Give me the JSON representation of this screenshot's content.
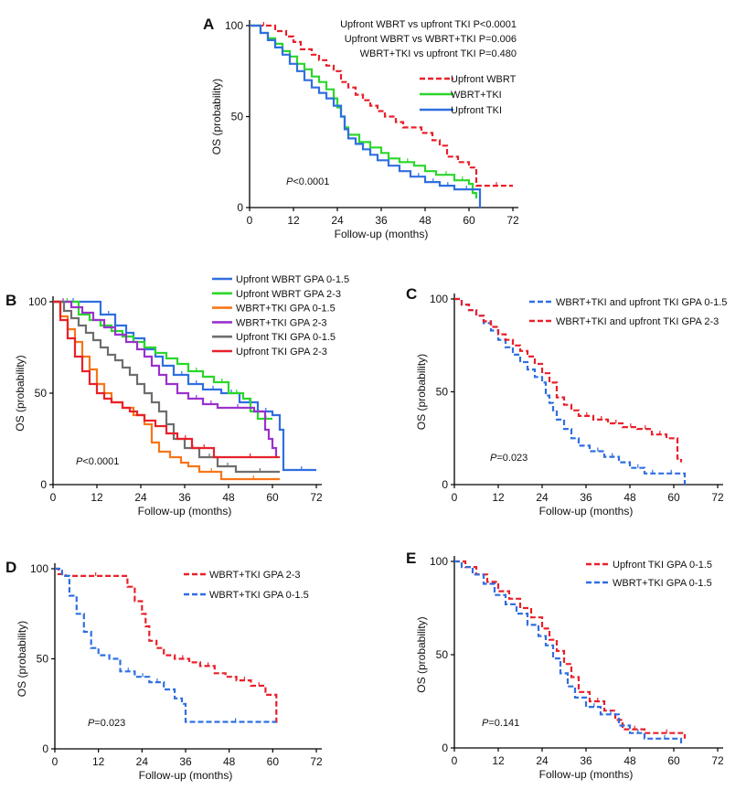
{
  "colors": {
    "red": "#e8212a",
    "green": "#2bd62b",
    "blue": "#2f6fe0",
    "orange": "#f7761a",
    "purple": "#9932cc",
    "gray": "#6e6e6e",
    "axis": "#000000"
  },
  "chart_data": [
    {
      "id": "A",
      "type": "line",
      "step": true,
      "letter": "A",
      "xlabel": "Follow-up (months)",
      "ylabel": "OS (probability)",
      "xticks": [
        0,
        12,
        24,
        36,
        48,
        60,
        72
      ],
      "yticks": [
        0,
        50,
        100
      ],
      "xlim": [
        0,
        72
      ],
      "ylim": [
        0,
        100
      ],
      "pvalue_label": "P",
      "pvalue_text": "<0.0001",
      "comparisons": [
        "Upfront WBRT vs upfront TKI P<0.0001",
        "Upfront WBRT vs WBRT+TKI  P=0.006",
        "WBRT+TKI vs upfront TKI  P=0.480"
      ],
      "series": [
        {
          "name": "Upfront WBRT",
          "color": "red",
          "dashed": true,
          "x": [
            0,
            7,
            10,
            12,
            14,
            17,
            19,
            21,
            23,
            25,
            27,
            29,
            31,
            33,
            35,
            37,
            40,
            42,
            44,
            47,
            50,
            52,
            54,
            57,
            60,
            62,
            72
          ],
          "y": [
            100,
            97,
            94,
            91,
            87,
            84,
            81,
            78,
            75,
            69,
            66,
            62,
            59,
            56,
            53,
            50,
            47,
            44,
            44,
            41,
            37,
            34,
            28,
            25,
            22,
            12,
            12
          ]
        },
        {
          "name": "WBRT+TKI",
          "color": "green",
          "dashed": false,
          "x": [
            0,
            3,
            5,
            7,
            9,
            11,
            13,
            15,
            17,
            19,
            21,
            23,
            24,
            25,
            26,
            27,
            30,
            33,
            36,
            38,
            41,
            45,
            48,
            51,
            56,
            60,
            61,
            62
          ],
          "y": [
            100,
            96,
            93,
            90,
            86,
            83,
            79,
            76,
            72,
            69,
            65,
            60,
            55,
            50,
            44,
            40,
            36,
            33,
            30,
            27,
            25,
            23,
            20,
            18,
            15,
            13,
            8,
            5
          ]
        },
        {
          "name": "Upfront TKI",
          "color": "blue",
          "dashed": false,
          "x": [
            0,
            3,
            5,
            7,
            9,
            11,
            13,
            15,
            17,
            19,
            21,
            23,
            25,
            26,
            27,
            29,
            31,
            33,
            35,
            38,
            41,
            44,
            48,
            52,
            56,
            62,
            63
          ],
          "y": [
            100,
            96,
            92,
            88,
            84,
            79,
            75,
            70,
            66,
            63,
            60,
            56,
            50,
            43,
            38,
            35,
            32,
            29,
            26,
            23,
            20,
            17,
            14,
            12,
            10,
            10,
            0
          ]
        }
      ]
    },
    {
      "id": "B",
      "type": "line",
      "step": true,
      "letter": "B",
      "xlabel": "Follow-up (months)",
      "ylabel": "OS (probability)",
      "xticks": [
        0,
        12,
        24,
        36,
        48,
        60,
        72
      ],
      "yticks": [
        0,
        50,
        100
      ],
      "xlim": [
        0,
        72
      ],
      "ylim": [
        0,
        100
      ],
      "pvalue_label": "P",
      "pvalue_text": "<0.0001",
      "series": [
        {
          "name": "Upfront WBRT GPA 0-1.5",
          "color": "blue",
          "dashed": false,
          "x": [
            0,
            10,
            13,
            17,
            20,
            22,
            25,
            28,
            30,
            33,
            37,
            41,
            46,
            51,
            56,
            60,
            62,
            63,
            72
          ],
          "y": [
            100,
            100,
            93,
            87,
            83,
            80,
            74,
            70,
            65,
            60,
            55,
            52,
            50,
            45,
            40,
            38,
            30,
            8,
            8
          ]
        },
        {
          "name": "Upfront WBRT GPA 2-3",
          "color": "green",
          "dashed": false,
          "x": [
            0,
            7,
            10,
            13,
            16,
            19,
            22,
            25,
            28,
            31,
            34,
            37,
            41,
            44,
            48,
            52,
            54,
            56,
            60
          ],
          "y": [
            100,
            93,
            90,
            87,
            84,
            81,
            78,
            75,
            72,
            69,
            66,
            62,
            59,
            56,
            50,
            47,
            40,
            36,
            36
          ]
        },
        {
          "name": "WBRT+TKI GPA 0-1.5",
          "color": "orange",
          "dashed": false,
          "x": [
            0,
            2,
            4,
            6,
            8,
            10,
            12,
            14,
            16,
            19,
            22,
            25,
            27,
            29,
            32,
            35,
            37,
            40,
            46,
            62
          ],
          "y": [
            100,
            92,
            85,
            78,
            70,
            63,
            55,
            50,
            45,
            42,
            38,
            33,
            23,
            18,
            15,
            12,
            10,
            7,
            3,
            3
          ]
        },
        {
          "name": "WBRT+TKI GPA 2-3",
          "color": "purple",
          "dashed": false,
          "x": [
            0,
            5,
            8,
            11,
            14,
            17,
            20,
            23,
            25,
            27,
            29,
            31,
            34,
            37,
            41,
            45,
            55,
            58,
            59,
            60,
            61
          ],
          "y": [
            100,
            97,
            94,
            90,
            86,
            82,
            78,
            74,
            70,
            65,
            60,
            55,
            50,
            47,
            44,
            42,
            40,
            30,
            25,
            20,
            15
          ]
        },
        {
          "name": "Upfront TKI GPA 0-1.5",
          "color": "gray",
          "dashed": false,
          "x": [
            0,
            3,
            5,
            7,
            9,
            11,
            13,
            15,
            17,
            19,
            21,
            23,
            25,
            27,
            29,
            31,
            33,
            36,
            40,
            45,
            50,
            62
          ],
          "y": [
            100,
            95,
            91,
            87,
            83,
            79,
            75,
            71,
            68,
            64,
            60,
            55,
            50,
            45,
            40,
            33,
            25,
            20,
            15,
            10,
            7,
            7
          ]
        },
        {
          "name": "Upfront TKI GPA 2-3",
          "color": "red",
          "dashed": false,
          "x": [
            0,
            2,
            4,
            6,
            8,
            10,
            12,
            14,
            16,
            19,
            21,
            23,
            25,
            28,
            31,
            34,
            38,
            44,
            62
          ],
          "y": [
            100,
            90,
            80,
            70,
            62,
            55,
            50,
            47,
            45,
            42,
            40,
            38,
            35,
            32,
            28,
            25,
            20,
            15,
            15
          ]
        }
      ]
    },
    {
      "id": "C",
      "type": "line",
      "step": true,
      "letter": "C",
      "xlabel": "Follow-up (months)",
      "ylabel": "OS (probability)",
      "xticks": [
        0,
        12,
        24,
        36,
        48,
        60,
        72
      ],
      "yticks": [
        0,
        50,
        100
      ],
      "xlim": [
        0,
        72
      ],
      "ylim": [
        0,
        100
      ],
      "pvalue_label": "P",
      "pvalue_text": "=0.023",
      "series": [
        {
          "name": "WBRT+TKI and upfront TKI GPA 0-1.5",
          "color": "blue",
          "dashed": true,
          "x": [
            0,
            2,
            4,
            6,
            8,
            10,
            12,
            14,
            16,
            18,
            20,
            22,
            24,
            25,
            26,
            27,
            28,
            30,
            32,
            34,
            37,
            41,
            45,
            48,
            52,
            56,
            62,
            63
          ],
          "y": [
            100,
            97,
            94,
            91,
            87,
            83,
            78,
            74,
            70,
            66,
            62,
            58,
            55,
            48,
            44,
            40,
            35,
            30,
            25,
            21,
            18,
            15,
            12,
            9,
            6,
            6,
            6,
            0
          ]
        },
        {
          "name": "WBRT+TKI and upfront TKI GPA 2-3",
          "color": "red",
          "dashed": true,
          "x": [
            0,
            2,
            4,
            6,
            8,
            10,
            12,
            14,
            16,
            18,
            20,
            22,
            24,
            26,
            28,
            30,
            32,
            34,
            38,
            42,
            46,
            50,
            54,
            58,
            61,
            62
          ],
          "y": [
            100,
            97,
            94,
            91,
            88,
            85,
            81,
            78,
            75,
            72,
            69,
            65,
            60,
            55,
            47,
            43,
            40,
            37,
            35,
            33,
            31,
            30,
            27,
            25,
            14,
            12
          ]
        }
      ]
    },
    {
      "id": "D",
      "type": "line",
      "step": true,
      "letter": "D",
      "xlabel": "Follow-up (months)",
      "ylabel": "OS (probability)",
      "xticks": [
        0,
        12,
        24,
        36,
        48,
        60,
        72
      ],
      "yticks": [
        0,
        50,
        100
      ],
      "xlim": [
        0,
        72
      ],
      "ylim": [
        0,
        100
      ],
      "pvalue_label": "P",
      "pvalue_text": "=0.023",
      "series": [
        {
          "name": "WBRT+TKI GPA 2-3",
          "color": "red",
          "dashed": true,
          "x": [
            0,
            1,
            3,
            18,
            20,
            22,
            24,
            25,
            26,
            28,
            30,
            33,
            37,
            40,
            44,
            47,
            50,
            54,
            58,
            61,
            62
          ],
          "y": [
            100,
            97,
            96,
            96,
            90,
            82,
            75,
            68,
            60,
            56,
            52,
            50,
            48,
            46,
            42,
            40,
            38,
            35,
            30,
            15,
            15
          ]
        },
        {
          "name": "WBRT+TKI GPA 0-1.5",
          "color": "blue",
          "dashed": true,
          "x": [
            0,
            2,
            4,
            6,
            8,
            10,
            12,
            15,
            18,
            22,
            26,
            30,
            33,
            35,
            36,
            61
          ],
          "y": [
            100,
            96,
            85,
            75,
            65,
            56,
            52,
            50,
            43,
            40,
            37,
            33,
            28,
            25,
            15,
            15
          ]
        }
      ]
    },
    {
      "id": "E",
      "type": "line",
      "step": true,
      "letter": "E",
      "xlabel": "Follow-up (months)",
      "ylabel": "OS (probability)",
      "xticks": [
        0,
        12,
        24,
        36,
        48,
        60,
        72
      ],
      "yticks": [
        0,
        50,
        100
      ],
      "xlim": [
        0,
        72
      ],
      "ylim": [
        0,
        100
      ],
      "pvalue_label": "P",
      "pvalue_text": "=0.141",
      "series": [
        {
          "name": "Upfront TKI GPA 0-1.5",
          "color": "red",
          "dashed": true,
          "x": [
            0,
            3,
            6,
            9,
            12,
            15,
            18,
            21,
            24,
            26,
            28,
            30,
            32,
            34,
            37,
            41,
            44,
            46,
            52,
            63
          ],
          "y": [
            100,
            97,
            93,
            89,
            84,
            80,
            75,
            70,
            64,
            58,
            52,
            45,
            38,
            30,
            25,
            20,
            15,
            10,
            8,
            5
          ]
        },
        {
          "name": "WBRT+TKI GPA 0-1.5",
          "color": "blue",
          "dashed": true,
          "x": [
            0,
            2,
            5,
            8,
            11,
            14,
            17,
            20,
            23,
            25,
            27,
            29,
            31,
            33,
            36,
            40,
            45,
            48,
            52,
            62
          ],
          "y": [
            100,
            97,
            93,
            88,
            82,
            77,
            72,
            66,
            60,
            55,
            48,
            40,
            33,
            27,
            22,
            18,
            12,
            8,
            5,
            2
          ]
        }
      ]
    }
  ]
}
